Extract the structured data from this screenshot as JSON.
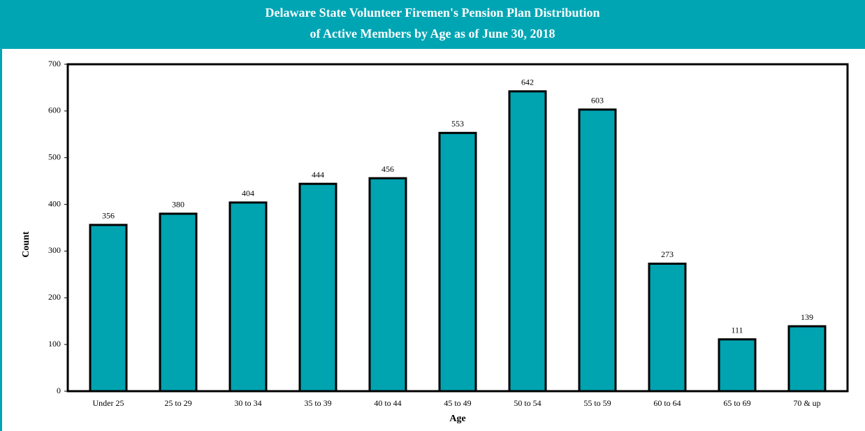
{
  "chart_data": {
    "type": "bar",
    "title": [
      "Delaware State Volunteer Firemen's Pension Plan Distribution",
      "of Active Members by Age as of June 30, 2018"
    ],
    "x_label": "Age",
    "y_label": "Count",
    "categories": [
      "Under 25",
      "25 to 29",
      "30 to 34",
      "35 to 39",
      "40 to 44",
      "45 to 49",
      "50 to 54",
      "55 to 59",
      "60 to 64",
      "65 to 69",
      "70 & up"
    ],
    "values": [
      356,
      380,
      404,
      444,
      456,
      553,
      642,
      603,
      273,
      111,
      139
    ],
    "color": "#00a3b0",
    "ylim": [
      0,
      700
    ],
    "yticks": [
      0,
      100,
      200,
      300,
      400,
      500,
      600,
      700
    ],
    "grid": false
  }
}
